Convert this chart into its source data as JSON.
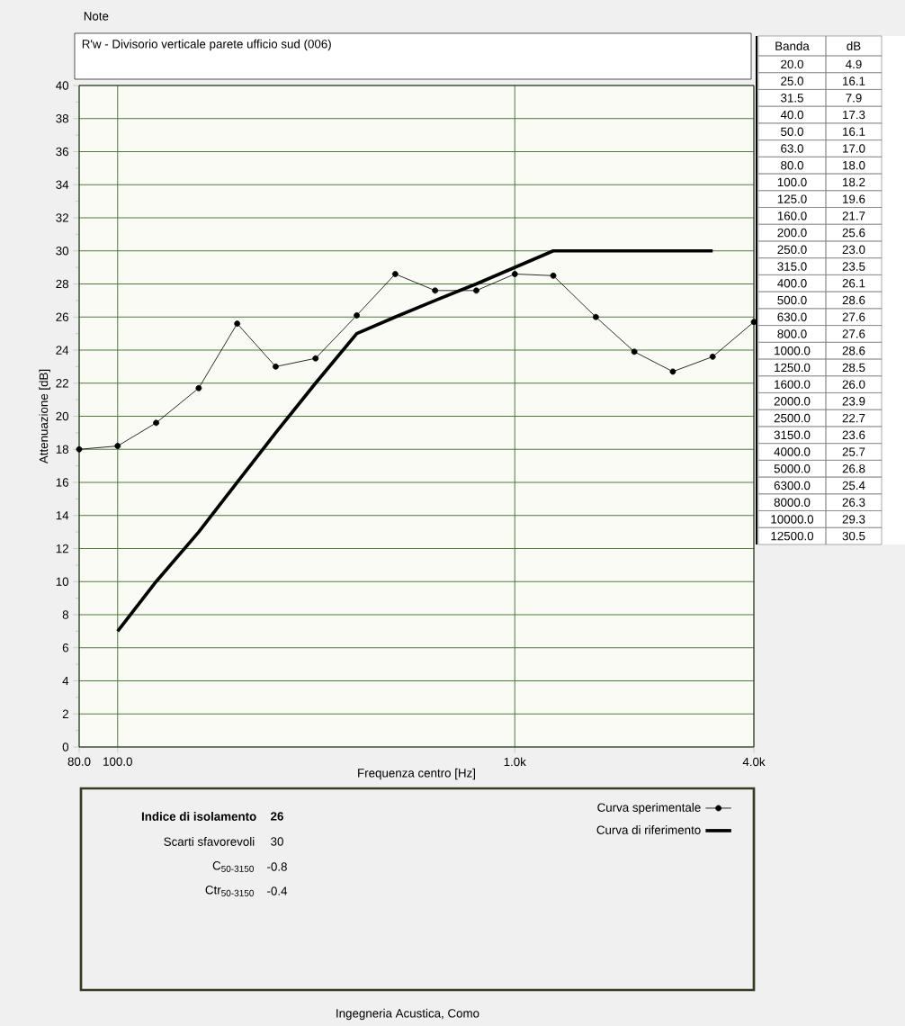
{
  "chart_data": [
    {
      "type": "line",
      "title": "R'w - Divisorio verticale parete ufficio sud (006)",
      "xlabel": "Frequenza centro [Hz]",
      "ylabel": "Attenuazione [dB]",
      "log": "x",
      "xlim": [
        80,
        4000
      ],
      "xticks": [
        {
          "value": 80,
          "label": "80.0"
        },
        {
          "value": 100,
          "label": "100.0"
        },
        {
          "value": 1000,
          "label": "1.0k"
        },
        {
          "value": 4000,
          "label": "4.0k"
        }
      ],
      "ylim": [
        0,
        40
      ],
      "yticks": [
        0,
        2,
        4,
        6,
        8,
        10,
        12,
        14,
        16,
        18,
        20,
        22,
        24,
        26,
        28,
        30,
        32,
        34,
        36,
        38,
        40
      ],
      "grid": true,
      "legend": "bottom",
      "annotations": [
        "Note",
        "Indice di isolamento",
        "26",
        "Scarti sfavorevoli",
        "30",
        "C$_{50-3150}$",
        "-0.8",
        "Ctr$_{50-3150}$",
        "-0.4",
        "Ingegneria Acustica, Como"
      ],
      "series": [
        {
          "name": "Curva sperimentale",
          "color": "#000000",
          "marker": "circle",
          "x": [
            80,
            100,
            125,
            160,
            200,
            250,
            315,
            400,
            500,
            630,
            800,
            1000,
            1250,
            1600,
            2000,
            2500,
            3150,
            4000
          ],
          "values": [
            18.0,
            18.2,
            19.6,
            21.7,
            25.6,
            23.0,
            23.5,
            26.1,
            28.6,
            27.6,
            27.6,
            28.6,
            28.5,
            26.0,
            23.9,
            22.7,
            23.6,
            25.7
          ]
        },
        {
          "name": "Curva di riferimento",
          "color": "#000000",
          "marker": "none",
          "x": [
            100,
            125,
            160,
            200,
            250,
            315,
            400,
            500,
            630,
            800,
            1000,
            1250,
            1600,
            2000,
            2500,
            3150
          ],
          "values": [
            7,
            10,
            13,
            16,
            19,
            22,
            25,
            26,
            27,
            28,
            29,
            30,
            30,
            30,
            30,
            30
          ]
        }
      ]
    },
    {
      "type": "other",
      "xlabel": "Banda",
      "ylabel": "dB",
      "value_labels": [
        "4.9",
        "16.1",
        "7.9",
        "17.3",
        "16.1",
        "17.0",
        "18.0",
        "18.2",
        "19.6",
        "21.7",
        "25.6",
        "23.0",
        "23.5",
        "26.1",
        "28.6",
        "27.6",
        "27.6",
        "28.6",
        "28.5",
        "26.0",
        "23.9",
        "22.7",
        "23.6",
        "25.7",
        "26.8",
        "25.4",
        "26.3",
        "29.3",
        "30.5"
      ],
      "categories": [
        "20.0",
        "25.0",
        "31.5",
        "40.0",
        "50.0",
        "63.0",
        "80.0",
        "100.0",
        "125.0",
        "160.0",
        "200.0",
        "250.0",
        "315.0",
        "400.0",
        "500.0",
        "630.0",
        "800.0",
        "1000.0",
        "1250.0",
        "1600.0",
        "2000.0",
        "2500.0",
        "3150.0",
        "4000.0",
        "5000.0",
        "6300.0",
        "8000.0",
        "10000.0",
        "12500.0"
      ]
    }
  ]
}
